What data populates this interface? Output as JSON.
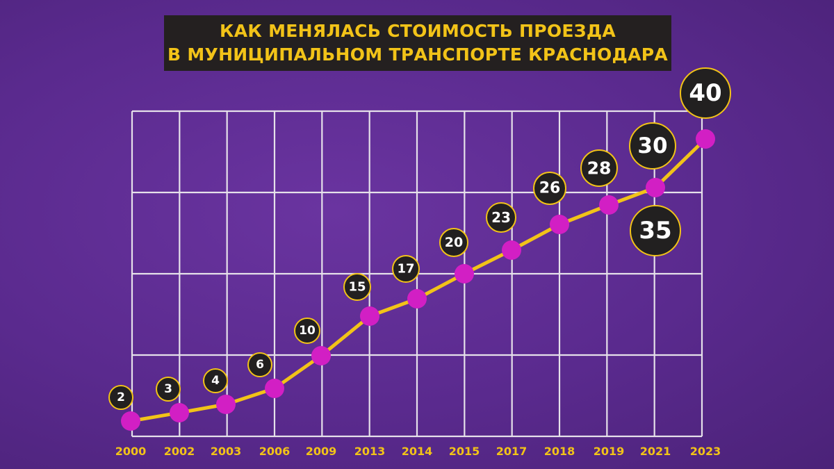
{
  "title": {
    "line1": "КАК МЕНЯЛАСЬ СТОИМОСТЬ ПРОЕЗДА",
    "line2": "В МУНИЦИПАЛЬНОМ ТРАНСПОРТЕ КРАСНОДАРА"
  },
  "colors": {
    "background": "#5a2a8c",
    "title_box": "#242020",
    "title_text": "#f2c318",
    "line": "#f2c318",
    "marker": "#d21fc4",
    "grid": "#e6e1ea",
    "badge": "#222020",
    "badge_ring": "#f2c318",
    "badge_text": "#ffffff",
    "year_text": "#f2c318"
  },
  "chart_data": {
    "type": "line",
    "title": "КАК МЕНЯЛАСЬ СТОИМОСТЬ ПРОЕЗДА В МУНИЦИПАЛЬНОМ ТРАНСПОРТЕ КРАСНОДАРА",
    "categories": [
      "2000",
      "2002",
      "2003",
      "2006",
      "2009",
      "2013",
      "2014",
      "2015",
      "2017",
      "2018",
      "2019",
      "2021",
      "2023"
    ],
    "series": [
      {
        "values": [
          2,
          3,
          4,
          6,
          10,
          15,
          17,
          20,
          23,
          26,
          28,
          30,
          40
        ]
      }
    ],
    "extra_labels": [
      {
        "category": "2021",
        "value": 35,
        "text": "35"
      }
    ],
    "xlabel": "",
    "ylabel": "",
    "grid": true
  }
}
